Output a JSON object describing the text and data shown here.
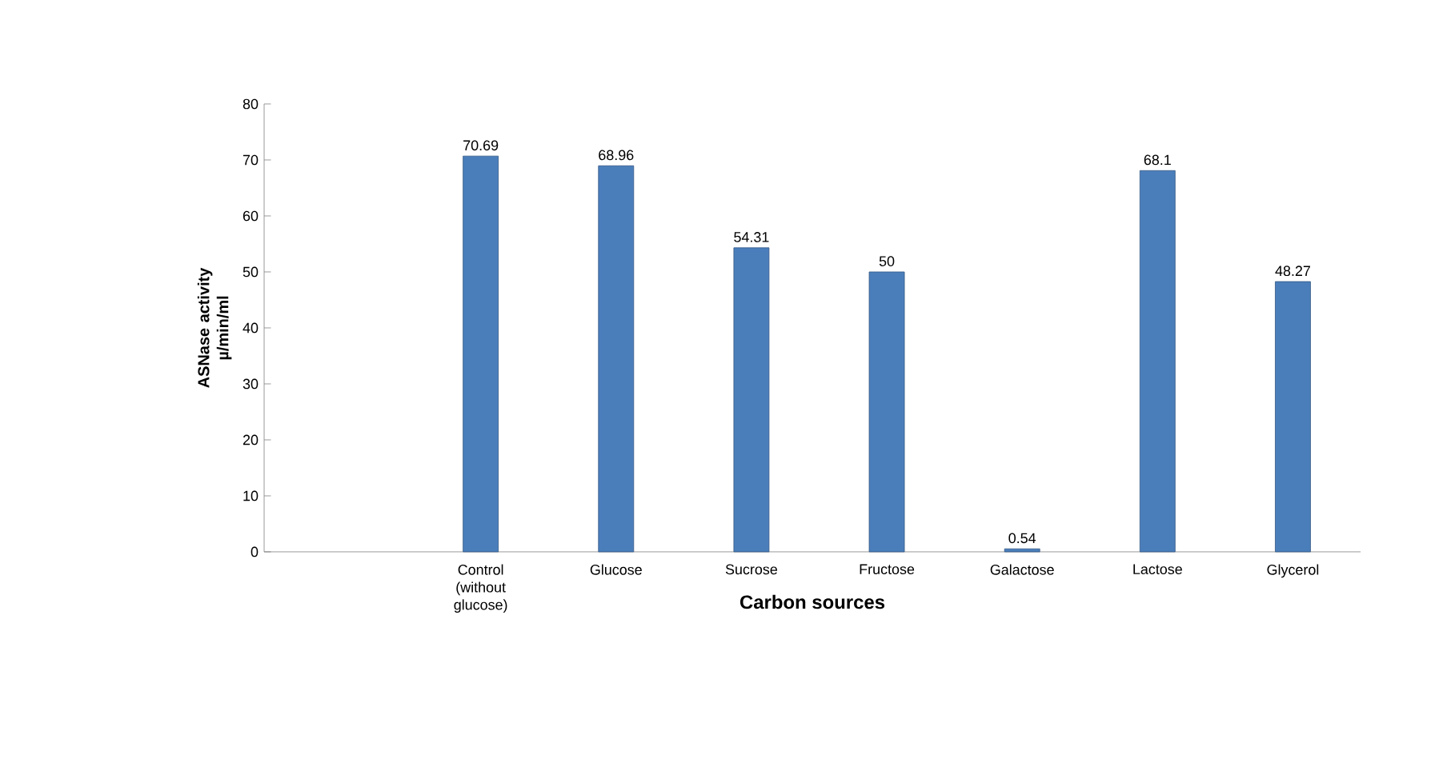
{
  "chart_data": {
    "type": "bar",
    "xlabel": "Carbon sources",
    "ylabel": "ASNase activity µ/min/ml",
    "categories": [
      null,
      "Control (without glucose)",
      "Glucose",
      "Sucrose",
      "Fructose",
      "Galactose",
      "Lactose",
      "Glycerol"
    ],
    "values": [
      null,
      70.69,
      68.96,
      54.31,
      50,
      0.54,
      68.1,
      48.27
    ],
    "color": "#4a7ebb",
    "data_labels": true,
    "ylim": [
      0,
      80
    ],
    "yticks": [
      0,
      10,
      20,
      30,
      40,
      50,
      60,
      70,
      80
    ],
    "grid": false
  }
}
